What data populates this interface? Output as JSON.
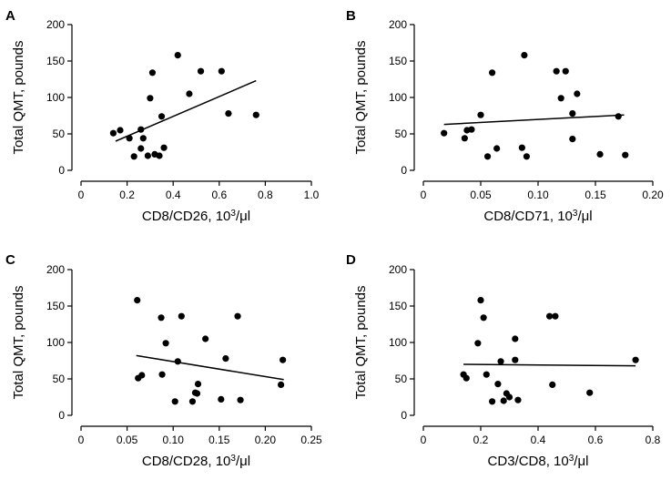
{
  "chart_data": [
    {
      "type": "scatter",
      "panel": "A",
      "xlabel_prefix": "CD8/CD26, 10",
      "xlabel_sup": "3",
      "xlabel_suffix": "/μl",
      "ylabel": "Total QMT, pounds",
      "xlim": [
        0,
        1.0
      ],
      "ylim": [
        0,
        200
      ],
      "xticks": [
        0,
        0.2,
        0.4,
        0.6,
        0.8,
        1.0
      ],
      "xtick_labels": [
        "0",
        "0.2",
        "0.4",
        "0.6",
        "0.8",
        "1.0"
      ],
      "yticks": [
        0,
        50,
        100,
        150,
        200
      ],
      "ytick_labels": [
        "0",
        "50",
        "100",
        "150",
        "200"
      ],
      "points": [
        [
          0.14,
          51
        ],
        [
          0.17,
          55
        ],
        [
          0.21,
          44
        ],
        [
          0.23,
          19
        ],
        [
          0.26,
          56
        ],
        [
          0.26,
          30
        ],
        [
          0.27,
          44
        ],
        [
          0.29,
          20
        ],
        [
          0.3,
          99
        ],
        [
          0.31,
          134
        ],
        [
          0.32,
          22
        ],
        [
          0.34,
          20
        ],
        [
          0.35,
          74
        ],
        [
          0.36,
          31
        ],
        [
          0.42,
          158
        ],
        [
          0.47,
          105
        ],
        [
          0.52,
          136
        ],
        [
          0.61,
          136
        ],
        [
          0.64,
          78
        ],
        [
          0.76,
          76
        ]
      ],
      "trend": [
        [
          0.15,
          40
        ],
        [
          0.76,
          123
        ]
      ]
    },
    {
      "type": "scatter",
      "panel": "B",
      "xlabel_prefix": "CD8/CD71, 10",
      "xlabel_sup": "3",
      "xlabel_suffix": "/μl",
      "ylabel": "Total QMT, pounds",
      "xlim": [
        0,
        0.2
      ],
      "ylim": [
        0,
        200
      ],
      "xticks": [
        0,
        0.05,
        0.1,
        0.15,
        0.2
      ],
      "xtick_labels": [
        "0",
        "0.05",
        "0.10",
        "0.15",
        "0.20"
      ],
      "yticks": [
        0,
        50,
        100,
        150,
        200
      ],
      "ytick_labels": [
        "0",
        "50",
        "100",
        "150",
        "200"
      ],
      "points": [
        [
          0.018,
          51
        ],
        [
          0.036,
          44
        ],
        [
          0.038,
          55
        ],
        [
          0.042,
          56
        ],
        [
          0.05,
          76
        ],
        [
          0.056,
          19
        ],
        [
          0.06,
          134
        ],
        [
          0.064,
          30
        ],
        [
          0.086,
          31
        ],
        [
          0.088,
          158
        ],
        [
          0.09,
          19
        ],
        [
          0.116,
          136
        ],
        [
          0.12,
          99
        ],
        [
          0.124,
          136
        ],
        [
          0.13,
          78
        ],
        [
          0.13,
          43
        ],
        [
          0.134,
          105
        ],
        [
          0.154,
          22
        ],
        [
          0.17,
          74
        ],
        [
          0.176,
          21
        ]
      ],
      "trend": [
        [
          0.018,
          63
        ],
        [
          0.175,
          76
        ]
      ]
    },
    {
      "type": "scatter",
      "panel": "C",
      "xlabel_prefix": "CD8/CD28, 10",
      "xlabel_sup": "3",
      "xlabel_suffix": "/μl",
      "ylabel": "Total QMT, pounds",
      "xlim": [
        0,
        0.25
      ],
      "ylim": [
        0,
        200
      ],
      "xticks": [
        0,
        0.05,
        0.1,
        0.15,
        0.2,
        0.25
      ],
      "xtick_labels": [
        "0",
        "0.05",
        "0.10",
        "0.15",
        "0.20",
        "0.25"
      ],
      "yticks": [
        0,
        50,
        100,
        150,
        200
      ],
      "ytick_labels": [
        "0",
        "50",
        "100",
        "150",
        "200"
      ],
      "points": [
        [
          0.061,
          158
        ],
        [
          0.062,
          51
        ],
        [
          0.066,
          55
        ],
        [
          0.087,
          134
        ],
        [
          0.088,
          56
        ],
        [
          0.092,
          99
        ],
        [
          0.102,
          19
        ],
        [
          0.105,
          74
        ],
        [
          0.109,
          136
        ],
        [
          0.121,
          19
        ],
        [
          0.124,
          31
        ],
        [
          0.126,
          30
        ],
        [
          0.127,
          43
        ],
        [
          0.135,
          105
        ],
        [
          0.152,
          22
        ],
        [
          0.157,
          78
        ],
        [
          0.17,
          136
        ],
        [
          0.173,
          21
        ],
        [
          0.217,
          42
        ],
        [
          0.219,
          76
        ]
      ],
      "trend": [
        [
          0.06,
          82
        ],
        [
          0.22,
          49
        ]
      ]
    },
    {
      "type": "scatter",
      "panel": "D",
      "xlabel_prefix": "CD3/CD8, 10",
      "xlabel_sup": "3",
      "xlabel_suffix": "/μl",
      "ylabel": "Total QMT, pounds",
      "xlim": [
        0,
        0.8
      ],
      "ylim": [
        0,
        200
      ],
      "xticks": [
        0,
        0.2,
        0.4,
        0.6,
        0.8
      ],
      "xtick_labels": [
        "0",
        "0.2",
        "0.4",
        "0.6",
        "0.8"
      ],
      "yticks": [
        0,
        50,
        100,
        150,
        200
      ],
      "ytick_labels": [
        "0",
        "50",
        "100",
        "150",
        "200"
      ],
      "points": [
        [
          0.14,
          56
        ],
        [
          0.15,
          51
        ],
        [
          0.19,
          99
        ],
        [
          0.2,
          158
        ],
        [
          0.21,
          134
        ],
        [
          0.22,
          56
        ],
        [
          0.24,
          19
        ],
        [
          0.26,
          43
        ],
        [
          0.27,
          74
        ],
        [
          0.28,
          20
        ],
        [
          0.29,
          30
        ],
        [
          0.3,
          25
        ],
        [
          0.32,
          105
        ],
        [
          0.32,
          76
        ],
        [
          0.33,
          21
        ],
        [
          0.44,
          136
        ],
        [
          0.45,
          42
        ],
        [
          0.46,
          136
        ],
        [
          0.58,
          31
        ],
        [
          0.74,
          76
        ]
      ],
      "trend": [
        [
          0.14,
          70
        ],
        [
          0.74,
          68
        ]
      ]
    }
  ]
}
